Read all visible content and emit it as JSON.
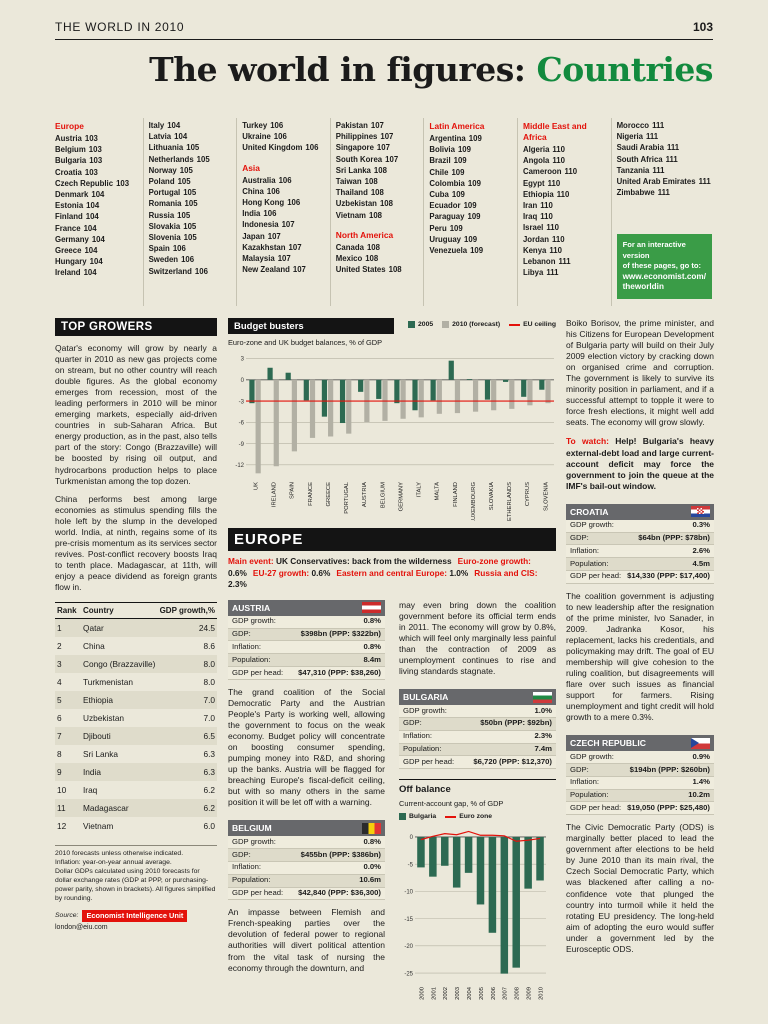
{
  "page": {
    "header_left": "THE WORLD IN 2010",
    "page_number": "103",
    "title_black": "The world in figures:",
    "title_green": "Countries",
    "accent_green": "#128a3e",
    "accent_red": "#e3120b"
  },
  "index": {
    "col1": [
      {
        "cls": "hdr",
        "name": "Europe",
        "page": ""
      },
      {
        "name": "Austria",
        "page": "103"
      },
      {
        "name": "Belgium",
        "page": "103"
      },
      {
        "name": "Bulgaria",
        "page": "103"
      },
      {
        "name": "Croatia",
        "page": "103"
      },
      {
        "name": "Czech Republic",
        "page": "103"
      },
      {
        "name": "Denmark",
        "page": "104"
      },
      {
        "name": "Estonia",
        "page": "104"
      },
      {
        "name": "Finland",
        "page": "104"
      },
      {
        "name": "France",
        "page": "104"
      },
      {
        "name": "Germany",
        "page": "104"
      },
      {
        "name": "Greece",
        "page": "104"
      },
      {
        "name": "Hungary",
        "page": "104"
      },
      {
        "name": "Ireland",
        "page": "104"
      }
    ],
    "col2": [
      {
        "name": "Italy",
        "page": "104"
      },
      {
        "name": "Latvia",
        "page": "104"
      },
      {
        "name": "Lithuania",
        "page": "105"
      },
      {
        "name": "Netherlands",
        "page": "105"
      },
      {
        "name": "Norway",
        "page": "105"
      },
      {
        "name": "Poland",
        "page": "105"
      },
      {
        "name": "Portugal",
        "page": "105"
      },
      {
        "name": "Romania",
        "page": "105"
      },
      {
        "name": "Russia",
        "page": "105"
      },
      {
        "name": "Slovakia",
        "page": "105"
      },
      {
        "name": "Slovenia",
        "page": "105"
      },
      {
        "name": "Spain",
        "page": "106"
      },
      {
        "name": "Sweden",
        "page": "106"
      },
      {
        "name": "Switzerland",
        "page": "106"
      }
    ],
    "col3": [
      {
        "name": "Turkey",
        "page": "106"
      },
      {
        "name": "Ukraine",
        "page": "106"
      },
      {
        "name": "United Kingdom",
        "page": "106"
      },
      {
        "cls": "sp",
        "name": "",
        "page": ""
      },
      {
        "cls": "hdr",
        "name": "Asia",
        "page": ""
      },
      {
        "name": "Australia",
        "page": "106"
      },
      {
        "name": "China",
        "page": "106"
      },
      {
        "name": "Hong Kong",
        "page": "106"
      },
      {
        "name": "India",
        "page": "106"
      },
      {
        "name": "Indonesia",
        "page": "107"
      },
      {
        "name": "Japan",
        "page": "107"
      },
      {
        "name": "Kazakhstan",
        "page": "107"
      },
      {
        "name": "Malaysia",
        "page": "107"
      },
      {
        "name": "New Zealand",
        "page": "107"
      }
    ],
    "col4": [
      {
        "name": "Pakistan",
        "page": "107"
      },
      {
        "name": "Philippines",
        "page": "107"
      },
      {
        "name": "Singapore",
        "page": "107"
      },
      {
        "name": "South Korea",
        "page": "107"
      },
      {
        "name": "Sri Lanka",
        "page": "108"
      },
      {
        "name": "Taiwan",
        "page": "108"
      },
      {
        "name": "Thailand",
        "page": "108"
      },
      {
        "name": "Uzbekistan",
        "page": "108"
      },
      {
        "name": "Vietnam",
        "page": "108"
      },
      {
        "cls": "sp",
        "name": "",
        "page": ""
      },
      {
        "cls": "hdr",
        "name": "North America",
        "page": ""
      },
      {
        "name": "Canada",
        "page": "108"
      },
      {
        "name": "Mexico",
        "page": "108"
      },
      {
        "name": "United States",
        "page": "108"
      }
    ],
    "col5": [
      {
        "cls": "hdr",
        "name": "Latin America",
        "page": ""
      },
      {
        "name": "Argentina",
        "page": "109"
      },
      {
        "name": "Bolivia",
        "page": "109"
      },
      {
        "name": "Brazil",
        "page": "109"
      },
      {
        "name": "Chile",
        "page": "109"
      },
      {
        "name": "Colombia",
        "page": "109"
      },
      {
        "name": "Cuba",
        "page": "109"
      },
      {
        "name": "Ecuador",
        "page": "109"
      },
      {
        "name": "Paraguay",
        "page": "109"
      },
      {
        "name": "Peru",
        "page": "109"
      },
      {
        "name": "Uruguay",
        "page": "109"
      },
      {
        "name": "Venezuela",
        "page": "109"
      }
    ],
    "col6": [
      {
        "cls": "hdr",
        "name": "Middle East and Africa",
        "page": ""
      },
      {
        "name": "Algeria",
        "page": "110"
      },
      {
        "name": "Angola",
        "page": "110"
      },
      {
        "name": "Cameroon",
        "page": "110"
      },
      {
        "name": "Egypt",
        "page": "110"
      },
      {
        "name": "Ethiopia",
        "page": "110"
      },
      {
        "name": "Iran",
        "page": "110"
      },
      {
        "name": "Iraq",
        "page": "110"
      },
      {
        "name": "Israel",
        "page": "110"
      },
      {
        "name": "Jordan",
        "page": "110"
      },
      {
        "name": "Kenya",
        "page": "110"
      },
      {
        "name": "Lebanon",
        "page": "111"
      },
      {
        "name": "Libya",
        "page": "111"
      }
    ],
    "col7": [
      {
        "name": "Morocco",
        "page": "111"
      },
      {
        "name": "Nigeria",
        "page": "111"
      },
      {
        "name": "Saudi Arabia",
        "page": "111"
      },
      {
        "name": "South Africa",
        "page": "111"
      },
      {
        "name": "Tanzania",
        "page": "111"
      },
      {
        "name": "United Arab Emirates",
        "page": "111"
      },
      {
        "name": "Zimbabwe",
        "page": "111"
      }
    ]
  },
  "webbox": {
    "lines": [
      {
        "t": "For an interactive version",
        "cls": ""
      },
      {
        "t": "of these pages, go to:",
        "cls": ""
      },
      {
        "t": "www.economist.com/",
        "cls": "b"
      },
      {
        "t": "theworldin",
        "cls": "b"
      }
    ]
  },
  "top_growers": {
    "heading": "TOP GROWERS",
    "p1": "Qatar's economy will grow by nearly a quarter in 2010 as new gas projects come on stream, but no other country will reach double figures. As the global economy emerges from recession, most of the leading performers in 2010 will be minor emerging markets, especially aid-driven countries in sub-Saharan Africa. But energy production, as in the past, also tells part of the story: Congo (Brazzaville) will be boosted by rising oil output, and hydrocarbons production helps to place Turkmenistan among the top dozen.",
    "p2": "China performs best among large economies as stimulus spending fills the hole left by the slump in the developed world. India, at ninth, regains some of its pre-crisis momentum as its services sector revives. Post-conflict recovery boosts Iraq to tenth place. Madagascar, at 11th, will enjoy a peace dividend as foreign grants flow in.",
    "headers": {
      "rank": "Rank",
      "country": "Country",
      "growth": "GDP growth,%"
    },
    "rows": [
      {
        "rank": "1",
        "country": "Qatar",
        "growth": "24.5"
      },
      {
        "rank": "2",
        "country": "China",
        "growth": "8.6"
      },
      {
        "rank": "3",
        "country": "Congo (Brazzaville)",
        "growth": "8.0"
      },
      {
        "rank": "4",
        "country": "Turkmenistan",
        "growth": "8.0"
      },
      {
        "rank": "5",
        "country": "Ethiopia",
        "growth": "7.0"
      },
      {
        "rank": "6",
        "country": "Uzbekistan",
        "growth": "7.0"
      },
      {
        "rank": "7",
        "country": "Djibouti",
        "growth": "6.5"
      },
      {
        "rank": "8",
        "country": "Sri Lanka",
        "growth": "6.3"
      },
      {
        "rank": "9",
        "country": "India",
        "growth": "6.3"
      },
      {
        "rank": "10",
        "country": "Iraq",
        "growth": "6.2"
      },
      {
        "rank": "11",
        "country": "Madagascar",
        "growth": "6.2"
      },
      {
        "rank": "12",
        "country": "Vietnam",
        "growth": "6.0"
      }
    ],
    "footnotes": [
      "2010 forecasts unless otherwise indicated.",
      "Inflation: year-on-year annual average.",
      "Dollar GDPs calculated using 2010 forecasts for dollar exchange rates (GDP at PPP, or purchasing-power parity, shown in brackets). All figures simplified by rounding."
    ],
    "source_label": "Source:",
    "source_box": "Economist Intelligence Unit",
    "source_email": "london@eiu.com"
  },
  "chart_data": [
    {
      "id": "budget_busters",
      "type": "bar",
      "title": "Budget busters",
      "subtitle": "Euro-zone and UK budget balances, % of GDP",
      "legend": [
        {
          "label": "2005",
          "swatch": "green"
        },
        {
          "label": "2010 (forecast)",
          "swatch": "gray"
        },
        {
          "label": "EU ceiling",
          "swatch": "redline"
        }
      ],
      "categories": [
        "UK",
        "IRELAND",
        "SPAIN",
        "FRANCE",
        "GREECE",
        "PORTUGAL",
        "AUSTRIA",
        "BELGIUM",
        "GERMANY",
        "ITALY",
        "MALTA",
        "FINLAND",
        "LUXEMBOURG",
        "SLOVAKIA",
        "NETHERLANDS",
        "CYPRUS",
        "SLOVENIA"
      ],
      "series": [
        {
          "name": "2005",
          "values": [
            -3.3,
            1.7,
            1.0,
            -2.9,
            -5.2,
            -6.1,
            -1.7,
            -2.7,
            -3.3,
            -4.3,
            -2.9,
            2.7,
            0.1,
            -2.8,
            -0.3,
            -2.4,
            -1.4
          ]
        },
        {
          "name": "2010 (forecast)",
          "values": [
            -13.2,
            -12.2,
            -10.1,
            -8.2,
            -8.0,
            -7.6,
            -6.0,
            -5.8,
            -5.5,
            -5.3,
            -4.8,
            -4.7,
            -4.5,
            -4.3,
            -4.1,
            -3.6,
            -3.3
          ]
        }
      ],
      "series_colors": [
        "#2d6a52",
        "#b2b0a4"
      ],
      "eu_ceiling": -3,
      "ylim": [
        -14,
        3.5
      ],
      "yticks": [
        3,
        0,
        -3,
        -6,
        -9,
        -12
      ],
      "legend_position": "top-right",
      "grid": true
    },
    {
      "id": "off_balance",
      "type": "bar",
      "title": "Off balance",
      "subtitle": "Current-account gap, % of GDP",
      "legend": [
        {
          "label": "Bulgaria",
          "swatch": "green"
        },
        {
          "label": "Euro zone",
          "swatch": "redline"
        }
      ],
      "categories": [
        "2000",
        "2001",
        "2002",
        "2003",
        "2004",
        "2005",
        "2006",
        "2007",
        "2008",
        "2009",
        "2010"
      ],
      "series": [
        {
          "name": "Bulgaria",
          "values": [
            -5.6,
            -7.3,
            -5.3,
            -9.3,
            -6.6,
            -12.4,
            -17.6,
            -25.1,
            -24.0,
            -9.5,
            -8.0
          ]
        },
        {
          "name": "Euro zone",
          "values": [
            -0.5,
            0.1,
            0.6,
            0.4,
            1.0,
            0.3,
            0.3,
            0.2,
            -0.8,
            -0.6,
            -0.3
          ]
        }
      ],
      "series_colors": [
        "#2d6a52",
        "#e3120b"
      ],
      "ylim": [
        -27,
        2
      ],
      "yticks": [
        0,
        -5,
        -10,
        -15,
        -20,
        -25
      ],
      "legend_position": "top-left",
      "grid": true
    }
  ],
  "europe": {
    "heading": "EUROPE",
    "segments": [
      {
        "label": "Main event:",
        "value": "UK Conservatives: back from the wilderness"
      },
      {
        "label": "Euro-zone growth:",
        "value": "0.6%"
      },
      {
        "label": "EU-27 growth:",
        "value": "0.6%"
      },
      {
        "label": "Eastern and central Europe:",
        "value": "1.0%"
      },
      {
        "label": "Russia and CIS:",
        "value": "2.3%"
      }
    ]
  },
  "countries": {
    "austria": {
      "name": "AUSTRIA",
      "stats": [
        {
          "label": "GDP growth:",
          "value": "0.8%"
        },
        {
          "label": "GDP:",
          "value": "$398bn (PPP: $322bn)"
        },
        {
          "label": "Inflation:",
          "value": "0.8%"
        },
        {
          "label": "Population:",
          "value": "8.4m"
        },
        {
          "label": "GDP per head:",
          "value": "$47,310 (PPP: $38,260)"
        }
      ],
      "text": "The grand coalition of the Social Democratic Party and the Austrian People's Party is working well, allowing the government to focus on the weak economy. Budget policy will concentrate on boosting consumer spending, pumping money into R&D, and shoring up the banks. Austria will be flagged for breaching Europe's fiscal-deficit ceiling, but with so many others in the same position it will be let off with a warning."
    },
    "belgium": {
      "name": "BELGIUM",
      "stats": [
        {
          "label": "GDP growth:",
          "value": "0.8%"
        },
        {
          "label": "GDP:",
          "value": "$455bn (PPP: $386bn)"
        },
        {
          "label": "Inflation:",
          "value": "0.0%"
        },
        {
          "label": "Population:",
          "value": "10.6m"
        },
        {
          "label": "GDP per head:",
          "value": "$42,840 (PPP: $36,300)"
        }
      ],
      "text1": "An impasse between Flemish and French-speaking parties over the devolution of federal power to regional authorities will divert political attention from the vital task of nursing the economy through the downturn, and",
      "text2": "may even bring down the coalition government before its official term ends in 2011. The economy will grow by 0.8%, which will feel only marginally less painful than the contraction of 2009 as unemployment continues to rise and living standards stagnate."
    },
    "bulgaria": {
      "name": "BULGARIA",
      "stats": [
        {
          "label": "GDP growth:",
          "value": "1.0%"
        },
        {
          "label": "GDP:",
          "value": "$50bn (PPP: $92bn)"
        },
        {
          "label": "Inflation:",
          "value": "2.3%"
        },
        {
          "label": "Population:",
          "value": "7.4m"
        },
        {
          "label": "GDP per head:",
          "value": "$6,720 (PPP: $12,370)"
        }
      ],
      "text": "Boiko Borisov, the prime minister, and his Citizens for European Development of Bulgaria party will build on their July 2009 election victory by cracking down on organised crime and corruption. The government is likely to survive its minority position in parliament, and if a successful attempt to topple it were to force fresh elections, it might well add seats. The economy will grow slowly.",
      "towatch_label": "To watch:",
      "towatch": "Help! Bulgaria's heavy external-debt load and large current-account deficit may force the government to join the queue at the IMF's bail-out window."
    },
    "croatia": {
      "name": "CROATIA",
      "stats": [
        {
          "label": "GDP growth:",
          "value": "0.3%"
        },
        {
          "label": "GDP:",
          "value": "$64bn (PPP: $78bn)"
        },
        {
          "label": "Inflation:",
          "value": "2.6%"
        },
        {
          "label": "Population:",
          "value": "4.5m"
        },
        {
          "label": "GDP per head:",
          "value": "$14,330 (PPP: $17,400)"
        }
      ],
      "text": "The coalition government is adjusting to new leadership after the resignation of the prime minister, Ivo Sanader, in 2009. Jadranka Kosor, his replacement, lacks his credentials, and policymaking may drift. The goal of EU membership will give cohesion to the ruling coalition, but disagreements will flare over such issues as financial support for farmers. Rising unemployment and tight credit will hold growth to a mere 0.3%."
    },
    "czech": {
      "name": "CZECH REPUBLIC",
      "stats": [
        {
          "label": "GDP growth:",
          "value": "0.9%"
        },
        {
          "label": "GDP:",
          "value": "$194bn (PPP: $260bn)"
        },
        {
          "label": "Inflation:",
          "value": "1.4%"
        },
        {
          "label": "Population:",
          "value": "10.2m"
        },
        {
          "label": "GDP per head:",
          "value": "$19,050 (PPP: $25,480)"
        }
      ],
      "text": "The Civic Democratic Party (ODS) is marginally better placed to lead the government after elections to be held by June 2010 than its main rival, the Czech Social Democratic Party, which was blackened after calling a no-confidence vote that plunged the country into turmoil while it held the rotating EU presidency. The long-held aim of adopting the euro would suffer under a government led by the Eurosceptic ODS."
    }
  }
}
